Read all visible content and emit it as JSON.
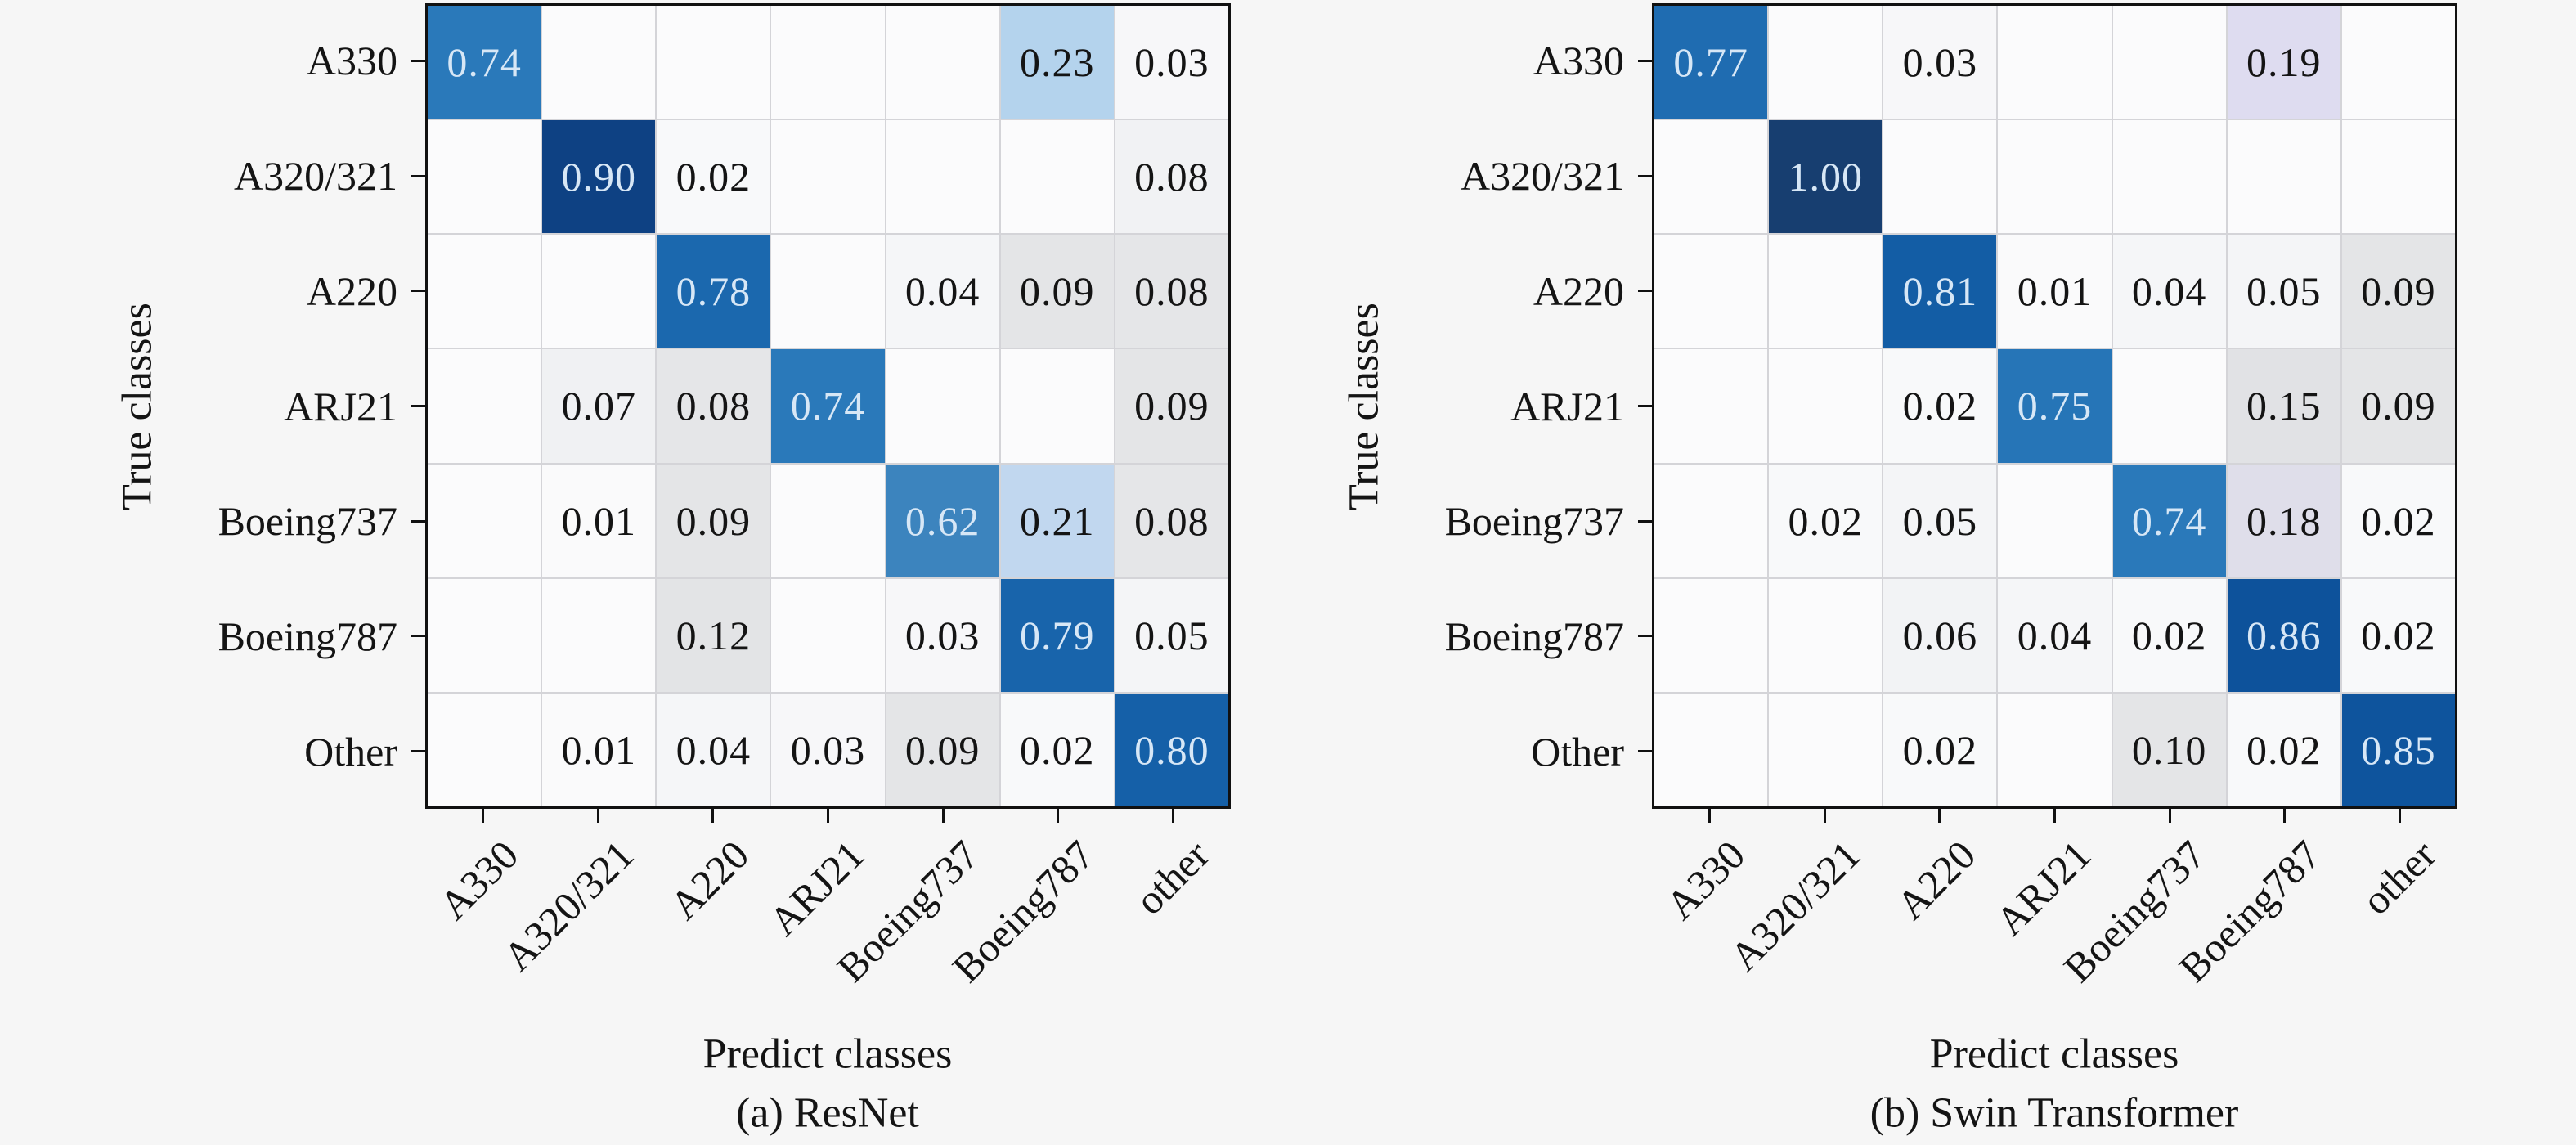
{
  "page": {
    "background": "#f6f6f6",
    "figure_kind": "confusion-matrix-pair"
  },
  "colormap": {
    "blank": "#fbfbfc",
    "gridline": "#d4d4d8",
    "axis_color": "#111111",
    "stops": [
      {
        "v": 0.0,
        "c": "#fbfbfc"
      },
      {
        "v": 0.05,
        "c": "#f4f5f7"
      },
      {
        "v": 0.07,
        "c": "#f0f1f3"
      },
      {
        "v": 0.08,
        "c": "#e5e6e8"
      },
      {
        "v": 0.13,
        "c": "#e2e3e5"
      },
      {
        "v": 0.17,
        "c": "#e0e0e4"
      },
      {
        "v": 0.19,
        "c": "#dedcf0"
      },
      {
        "v": 0.215,
        "c": "#bad6ef"
      },
      {
        "v": 0.25,
        "c": "#abceea"
      },
      {
        "v": 0.62,
        "c": "#3c84be"
      },
      {
        "v": 0.7,
        "c": "#2e7bba"
      },
      {
        "v": 0.74,
        "c": "#2a79ba"
      },
      {
        "v": 0.78,
        "c": "#1b68ae"
      },
      {
        "v": 0.82,
        "c": "#1059a2"
      },
      {
        "v": 0.86,
        "c": "#0d529b"
      },
      {
        "v": 0.9,
        "c": "#0e4183"
      },
      {
        "v": 1.0,
        "c": "#173e70"
      }
    ],
    "light_text_threshold": 0.5,
    "light_text": "#d7e7f6",
    "dark_text": "#141414"
  },
  "chart_data": [
    {
      "type": "heatmap",
      "caption": "(a) ResNet",
      "xlabel": "Predict classes",
      "ylabel": "True classes",
      "x_categories": [
        "A330",
        "A320/321",
        "A220",
        "ARJ21",
        "Boeing737",
        "Boeing787",
        "other"
      ],
      "y_categories": [
        "A330",
        "A320/321",
        "A220",
        "ARJ21",
        "Boeing737",
        "Boeing787",
        "Other"
      ],
      "value_range": [
        0,
        1
      ],
      "values": [
        [
          0.74,
          null,
          null,
          null,
          null,
          0.23,
          0.03
        ],
        [
          null,
          0.9,
          0.02,
          null,
          null,
          null,
          0.08
        ],
        [
          null,
          null,
          0.78,
          null,
          0.04,
          0.09,
          0.08
        ],
        [
          null,
          0.07,
          0.08,
          0.74,
          null,
          null,
          0.09
        ],
        [
          null,
          0.01,
          0.09,
          null,
          0.62,
          0.21,
          0.08
        ],
        [
          null,
          null,
          0.12,
          null,
          0.03,
          0.79,
          0.05
        ],
        [
          null,
          0.01,
          0.04,
          0.03,
          0.09,
          0.02,
          0.8
        ]
      ],
      "cell_color_overrides": [
        {
          "row": 1,
          "col": 6,
          "color": "#f1f2f4"
        }
      ]
    },
    {
      "type": "heatmap",
      "caption": "(b) Swin Transformer",
      "xlabel": "Predict classes",
      "ylabel": "True classes",
      "x_categories": [
        "A330",
        "A320/321",
        "A220",
        "ARJ21",
        "Boeing737",
        "Boeing787",
        "other"
      ],
      "y_categories": [
        "A330",
        "A320/321",
        "A220",
        "ARJ21",
        "Boeing737",
        "Boeing787",
        "Other"
      ],
      "value_range": [
        0,
        1
      ],
      "values": [
        [
          0.77,
          null,
          0.03,
          null,
          null,
          0.19,
          null
        ],
        [
          null,
          1.0,
          null,
          null,
          null,
          null,
          null
        ],
        [
          null,
          null,
          0.81,
          0.01,
          0.04,
          0.05,
          0.09
        ],
        [
          null,
          null,
          0.02,
          0.75,
          null,
          0.15,
          0.09
        ],
        [
          null,
          0.02,
          0.05,
          null,
          0.74,
          0.18,
          0.02
        ],
        [
          null,
          null,
          0.06,
          0.04,
          0.02,
          0.86,
          0.02
        ],
        [
          null,
          null,
          0.02,
          null,
          0.1,
          0.02,
          0.85
        ]
      ],
      "cell_color_overrides": []
    }
  ]
}
